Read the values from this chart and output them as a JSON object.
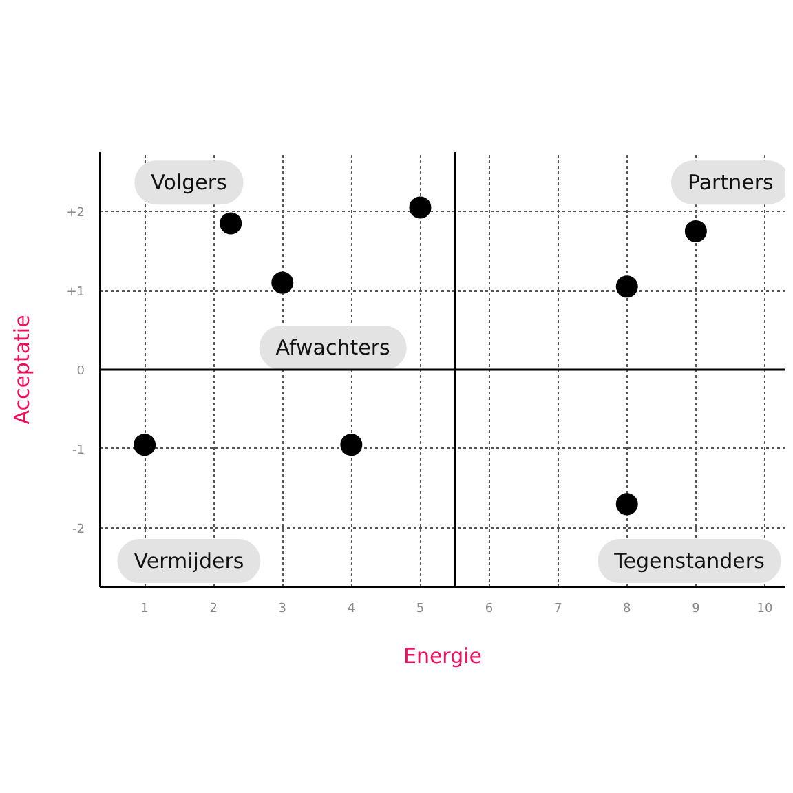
{
  "chart_data": {
    "type": "scatter",
    "xlabel": "Energie",
    "ylabel": "Acceptatie",
    "x": [
      2.25,
      3,
      5,
      8,
      9,
      1,
      4,
      8
    ],
    "values": [
      1.85,
      1.1,
      2.05,
      1.05,
      1.75,
      -0.95,
      -0.95,
      -1.7
    ],
    "color": "#000000",
    "marker": "circle",
    "xlim": [
      0.35,
      10.3
    ],
    "ylim": [
      -2.75,
      2.75
    ],
    "xticks": [
      1,
      2,
      3,
      4,
      5,
      6,
      7,
      8,
      9,
      10
    ],
    "yticks": [
      {
        "value": -2,
        "label": "-2"
      },
      {
        "value": -1,
        "label": "-1"
      },
      0,
      {
        "value": 1,
        "label": "+1"
      },
      {
        "value": 2,
        "label": "+2"
      }
    ],
    "grid": true,
    "ref_lines": [
      {
        "axis": "x",
        "value": 5.5,
        "color": "#000000",
        "line_style": "solid"
      },
      {
        "axis": "y",
        "value": 0,
        "color": "#000000",
        "line_style": "solid"
      }
    ],
    "annotations": [
      "Volgers",
      "Partners",
      "Afwachters",
      "Vermijders",
      "Tegenstanders"
    ]
  }
}
